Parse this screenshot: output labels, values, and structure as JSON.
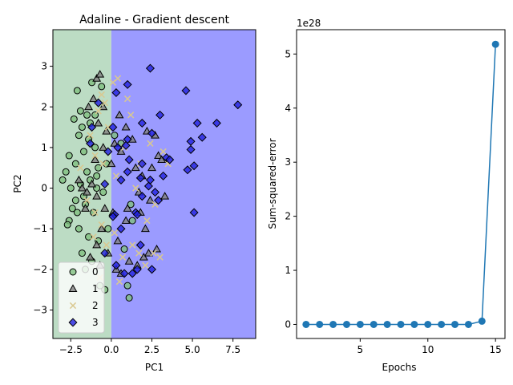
{
  "chart_data": [
    {
      "type": "scatter",
      "title": "Adaline - Gradient descent",
      "xlabel": "PC1",
      "ylabel": "PC2",
      "xlim": [
        -3.6,
        8.9
      ],
      "ylim": [
        -3.7,
        3.9
      ],
      "xticks": [
        -2.5,
        0.0,
        2.5,
        5.0,
        7.5
      ],
      "xtick_labels": [
        "−2.5",
        "0.0",
        "2.5",
        "5.0",
        "7.5"
      ],
      "yticks": [
        -3,
        -2,
        -1,
        0,
        1,
        2,
        3
      ],
      "ytick_labels": [
        "−3",
        "−2",
        "−1",
        "0",
        "1",
        "2",
        "3"
      ],
      "decision_regions": [
        {
          "class": "0",
          "x_range": [
            -3.6,
            0.0
          ],
          "color": "#bcdcc4"
        },
        {
          "class": "3",
          "x_range": [
            0.0,
            8.9
          ],
          "color": "#9b9bff"
        }
      ],
      "legend": {
        "position": "lower-left",
        "entries": [
          "0",
          "1",
          "2",
          "3"
        ]
      },
      "grid": false,
      "series": [
        {
          "name": "0",
          "marker": "circle",
          "color": "#7fbf7f",
          "points": [
            [
              -2.1,
              2.4
            ],
            [
              -1.9,
              1.9
            ],
            [
              -2.3,
              1.7
            ],
            [
              -1.5,
              1.8
            ],
            [
              -1.2,
              2.6
            ],
            [
              -0.6,
              2.5
            ],
            [
              -1.8,
              1.5
            ],
            [
              -2.0,
              1.3
            ],
            [
              -1.4,
              1.2
            ],
            [
              -2.6,
              0.8
            ],
            [
              -2.2,
              0.6
            ],
            [
              -1.7,
              0.9
            ],
            [
              -1.0,
              1.0
            ],
            [
              -0.8,
              0.5
            ],
            [
              -1.5,
              0.4
            ],
            [
              -2.8,
              0.4
            ],
            [
              -3.0,
              0.2
            ],
            [
              -2.5,
              0.0
            ],
            [
              -1.9,
              0.1
            ],
            [
              -1.3,
              0.2
            ],
            [
              -0.9,
              0.0
            ],
            [
              -0.5,
              -0.1
            ],
            [
              -2.2,
              -0.3
            ],
            [
              -1.6,
              -0.4
            ],
            [
              -1.1,
              -0.6
            ],
            [
              -2.6,
              -0.8
            ],
            [
              -2.0,
              -1.0
            ],
            [
              -1.4,
              -1.2
            ],
            [
              -0.8,
              -1.3
            ],
            [
              -1.8,
              -1.6
            ],
            [
              -1.2,
              -1.8
            ],
            [
              -1.6,
              -2.0
            ],
            [
              -0.4,
              -2.5
            ],
            [
              -0.2,
              -1.0
            ],
            [
              -0.3,
              0.6
            ],
            [
              -2.4,
              -0.5
            ],
            [
              0.8,
              -1.5
            ],
            [
              1.0,
              -2.4
            ],
            [
              1.1,
              -2.7
            ],
            [
              1.3,
              -0.8
            ],
            [
              0.6,
              1.1
            ],
            [
              0.2,
              1.3
            ],
            [
              1.2,
              -0.4
            ],
            [
              -2.7,
              -0.9
            ],
            [
              -1.0,
              1.8
            ],
            [
              -0.7,
              -2.4
            ],
            [
              -1.3,
              1.6
            ],
            [
              -2.1,
              -0.6
            ],
            [
              -0.9,
              0.3
            ],
            [
              -1.7,
              -0.2
            ]
          ]
        },
        {
          "name": "1",
          "marker": "triangle",
          "color": "#808080",
          "points": [
            [
              -0.9,
              2.7
            ],
            [
              -0.7,
              2.8
            ],
            [
              -1.1,
              2.2
            ],
            [
              -0.5,
              2.0
            ],
            [
              -0.8,
              1.6
            ],
            [
              -0.3,
              1.4
            ],
            [
              0.5,
              1.8
            ],
            [
              0.9,
              1.5
            ],
            [
              -0.5,
              1.0
            ],
            [
              0.2,
              1.1
            ],
            [
              0.6,
              0.9
            ],
            [
              -1.8,
              0.0
            ],
            [
              -1.5,
              -0.1
            ],
            [
              -1.2,
              0.1
            ],
            [
              -0.9,
              -0.2
            ],
            [
              -0.4,
              -0.5
            ],
            [
              0.1,
              -0.6
            ],
            [
              -0.6,
              -1.0
            ],
            [
              -0.9,
              -1.4
            ],
            [
              -1.3,
              -1.7
            ],
            [
              -0.7,
              -1.9
            ],
            [
              0.3,
              -2.0
            ],
            [
              0.6,
              -2.1
            ],
            [
              1.1,
              -1.8
            ],
            [
              1.6,
              -1.9
            ],
            [
              2.0,
              -1.7
            ],
            [
              2.3,
              -1.6
            ],
            [
              2.8,
              -1.5
            ],
            [
              1.8,
              -0.6
            ],
            [
              2.4,
              -0.3
            ],
            [
              1.9,
              0.3
            ],
            [
              2.5,
              0.5
            ],
            [
              2.9,
              0.8
            ],
            [
              3.1,
              0.7
            ],
            [
              2.2,
              1.4
            ],
            [
              2.7,
              1.3
            ],
            [
              1.0,
              -0.5
            ],
            [
              1.5,
              0.5
            ],
            [
              0.4,
              -1.3
            ],
            [
              -1.6,
              -0.5
            ],
            [
              -2.0,
              0.2
            ],
            [
              -1.0,
              0.7
            ],
            [
              0.0,
              0.6
            ],
            [
              1.3,
              1.2
            ],
            [
              1.7,
              -0.1
            ],
            [
              2.1,
              -1.0
            ],
            [
              -0.2,
              -1.6
            ],
            [
              0.9,
              -0.8
            ],
            [
              -1.4,
              2.0
            ],
            [
              3.3,
              -0.2
            ]
          ]
        },
        {
          "name": "2",
          "marker": "x",
          "color": "#d9c890",
          "points": [
            [
              -0.6,
              2.3
            ],
            [
              -0.4,
              2.1
            ],
            [
              0.1,
              2.6
            ],
            [
              0.4,
              2.7
            ],
            [
              -0.8,
              1.9
            ],
            [
              1.0,
              2.2
            ],
            [
              -0.2,
              1.5
            ],
            [
              1.2,
              1.8
            ],
            [
              -1.0,
              0.8
            ],
            [
              -0.5,
              0.6
            ],
            [
              0.3,
              0.3
            ],
            [
              -1.5,
              -0.3
            ],
            [
              -1.0,
              -0.6
            ],
            [
              -0.6,
              -0.9
            ],
            [
              0.2,
              -1.1
            ],
            [
              -0.3,
              -1.4
            ],
            [
              -1.1,
              -1.2
            ],
            [
              0.7,
              -1.7
            ],
            [
              1.3,
              -1.4
            ],
            [
              1.7,
              -1.6
            ],
            [
              2.1,
              -1.9
            ],
            [
              2.6,
              -1.6
            ],
            [
              3.0,
              -1.7
            ],
            [
              2.2,
              -0.8
            ],
            [
              2.7,
              -0.4
            ],
            [
              1.8,
              0.6
            ],
            [
              2.4,
              1.1
            ],
            [
              3.2,
              0.9
            ],
            [
              3.5,
              0.6
            ],
            [
              -1.9,
              0.5
            ],
            [
              -1.3,
              1.3
            ],
            [
              0.8,
              1.0
            ],
            [
              1.5,
              0.0
            ],
            [
              -0.7,
              -2.2
            ],
            [
              0.5,
              -2.3
            ]
          ]
        },
        {
          "name": "3",
          "marker": "diamond",
          "color": "#2020e0",
          "points": [
            [
              2.4,
              2.95
            ],
            [
              1.0,
              2.55
            ],
            [
              4.6,
              2.4
            ],
            [
              7.8,
              2.05
            ],
            [
              0.3,
              2.35
            ],
            [
              -0.8,
              2.1
            ],
            [
              3.0,
              1.8
            ],
            [
              5.3,
              1.6
            ],
            [
              6.5,
              1.6
            ],
            [
              1.9,
              1.6
            ],
            [
              0.1,
              1.5
            ],
            [
              -1.2,
              1.5
            ],
            [
              2.5,
              1.35
            ],
            [
              5.6,
              1.25
            ],
            [
              4.9,
              1.15
            ],
            [
              1.0,
              1.2
            ],
            [
              0.4,
              1.0
            ],
            [
              -0.2,
              0.9
            ],
            [
              4.9,
              0.95
            ],
            [
              1.1,
              0.7
            ],
            [
              3.4,
              0.75
            ],
            [
              1.9,
              0.6
            ],
            [
              3.6,
              0.7
            ],
            [
              5.1,
              0.55
            ],
            [
              4.7,
              0.45
            ],
            [
              1.0,
              0.4
            ],
            [
              3.2,
              0.3
            ],
            [
              1.8,
              0.25
            ],
            [
              2.4,
              0.2
            ],
            [
              0.6,
              0.2
            ],
            [
              -0.4,
              0.1
            ],
            [
              2.3,
              0.05
            ],
            [
              1.9,
              -0.2
            ],
            [
              2.7,
              -0.1
            ],
            [
              2.9,
              -0.3
            ],
            [
              0.2,
              -0.65
            ],
            [
              0.1,
              -0.7
            ],
            [
              1.5,
              -0.6
            ],
            [
              1.6,
              -0.65
            ],
            [
              5.1,
              -0.6
            ],
            [
              0.6,
              -1.0
            ],
            [
              1.8,
              -1.4
            ],
            [
              0.3,
              -1.9
            ],
            [
              1.6,
              -2.0
            ],
            [
              2.5,
              -2.0
            ],
            [
              0.8,
              -2.1
            ],
            [
              1.3,
              -2.1
            ],
            [
              -0.4,
              -1.6
            ],
            [
              -1.3,
              1.1
            ],
            [
              0.9,
              1.05
            ]
          ]
        }
      ]
    },
    {
      "type": "line",
      "title": "",
      "xlabel": "Epochs",
      "ylabel": "Sum-squared-error",
      "offset_text": "1e28",
      "xlim": [
        0.3,
        15.7
      ],
      "ylim": [
        -0.26,
        5.45
      ],
      "xticks": [
        5,
        10,
        15
      ],
      "xtick_labels": [
        "5",
        "10",
        "15"
      ],
      "yticks": [
        0,
        1,
        2,
        3,
        4,
        5
      ],
      "ytick_labels": [
        "0",
        "1",
        "2",
        "3",
        "4",
        "5"
      ],
      "grid": false,
      "color": "#1f77b4",
      "marker": "circle",
      "x": [
        1,
        2,
        3,
        4,
        5,
        6,
        7,
        8,
        9,
        10,
        11,
        12,
        13,
        14,
        15
      ],
      "y": [
        0,
        0,
        0,
        0,
        0,
        0,
        0,
        0,
        0,
        0,
        0,
        0,
        0,
        0.06,
        5.18
      ]
    }
  ]
}
